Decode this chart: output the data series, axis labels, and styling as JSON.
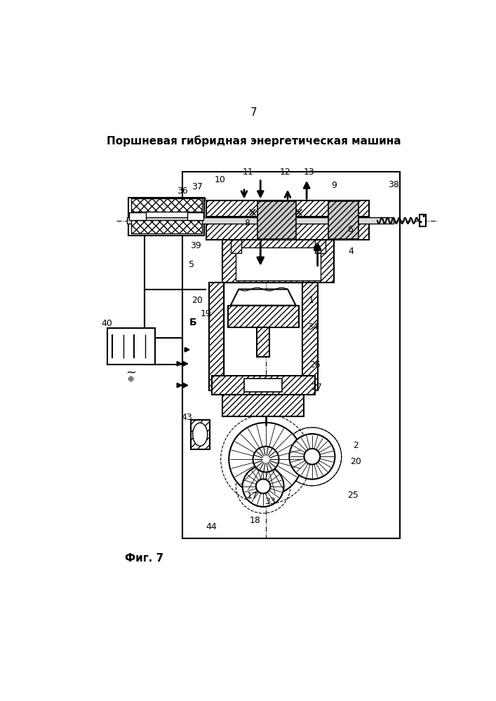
{
  "page_number": "7",
  "title": "Поршневая гибридная энергетическая машина",
  "fig_label": "Фиг. 7",
  "bg_color": "#ffffff",
  "line_color": "#000000"
}
